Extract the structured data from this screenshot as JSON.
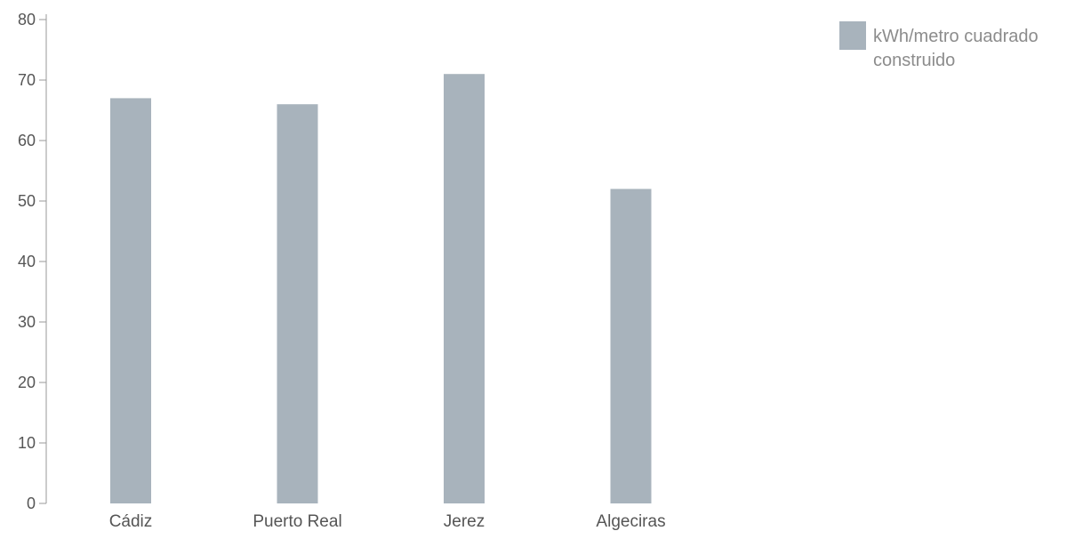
{
  "chart_data": {
    "type": "bar",
    "categories": [
      "Cádiz",
      "Puerto Real",
      "Jerez",
      "Algeciras"
    ],
    "series": [
      {
        "name": "kWh/metro cuadrado construido",
        "values": [
          67,
          66,
          71,
          52
        ]
      }
    ],
    "yticks": [
      0,
      10,
      20,
      30,
      40,
      50,
      60,
      70,
      80
    ],
    "ylim": [
      0,
      80
    ],
    "title": "",
    "xlabel": "",
    "ylabel": "",
    "grid": true,
    "legend_position": "top-right",
    "colors": {
      "bar": "#a8b3bc",
      "grid": "#e9e9e9",
      "axis": "#999999",
      "tick_label": "#555555",
      "legend_text": "#8c8c8c"
    }
  }
}
